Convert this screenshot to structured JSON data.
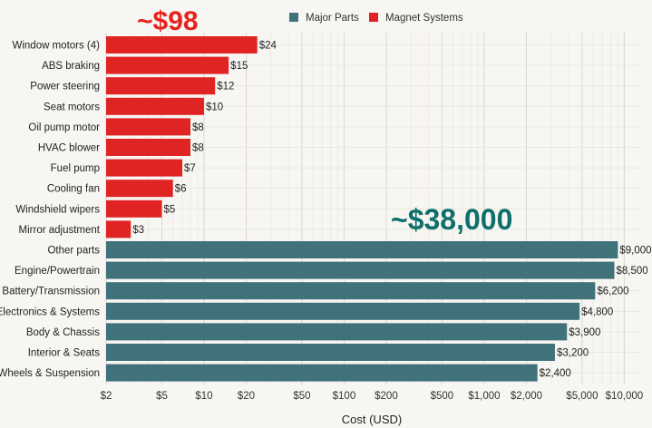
{
  "chart_data": {
    "type": "bar",
    "orientation": "horizontal",
    "x_scale": "log",
    "xlabel": "Cost (USD)",
    "xlim": [
      2,
      13000
    ],
    "grid": true,
    "legend_position": "top-center",
    "x_ticks": [
      {
        "value": 2,
        "label": "$2"
      },
      {
        "value": 5,
        "label": "$5"
      },
      {
        "value": 10,
        "label": "$10"
      },
      {
        "value": 20,
        "label": "$20"
      },
      {
        "value": 50,
        "label": "$50"
      },
      {
        "value": 100,
        "label": "$100"
      },
      {
        "value": 200,
        "label": "$200"
      },
      {
        "value": 500,
        "label": "$500"
      },
      {
        "value": 1000,
        "label": "$1,000"
      },
      {
        "value": 2000,
        "label": "$2,000"
      },
      {
        "value": 5000,
        "label": "$5,000"
      },
      {
        "value": 10000,
        "label": "$10,000"
      }
    ],
    "series": [
      {
        "name": "Magnet Systems",
        "color": "#e02424",
        "annotation": "~$98",
        "items": [
          {
            "label": "Window motors (4)",
            "value": 24,
            "value_label": "$24"
          },
          {
            "label": "ABS braking",
            "value": 15,
            "value_label": "$15"
          },
          {
            "label": "Power steering",
            "value": 12,
            "value_label": "$12"
          },
          {
            "label": "Seat motors",
            "value": 10,
            "value_label": "$10"
          },
          {
            "label": "Oil pump motor",
            "value": 8,
            "value_label": "$8"
          },
          {
            "label": "HVAC blower",
            "value": 8,
            "value_label": "$8"
          },
          {
            "label": "Fuel pump",
            "value": 7,
            "value_label": "$7"
          },
          {
            "label": "Cooling fan",
            "value": 6,
            "value_label": "$6"
          },
          {
            "label": "Windshield wipers",
            "value": 5,
            "value_label": "$5"
          },
          {
            "label": "Mirror adjustment",
            "value": 3,
            "value_label": "$3"
          }
        ]
      },
      {
        "name": "Major Parts",
        "color": "#40727a",
        "annotation": "~$38,000",
        "items": [
          {
            "label": "Other parts",
            "value": 9000,
            "value_label": "$9,000"
          },
          {
            "label": "Engine/Powertrain",
            "value": 8500,
            "value_label": "$8,500"
          },
          {
            "label": "Battery/Transmission",
            "value": 6200,
            "value_label": "$6,200"
          },
          {
            "label": "Electronics & Systems",
            "value": 4800,
            "value_label": "$4,800"
          },
          {
            "label": "Body & Chassis",
            "value": 3900,
            "value_label": "$3,900"
          },
          {
            "label": "Interior & Seats",
            "value": 3200,
            "value_label": "$3,200"
          },
          {
            "label": "Wheels & Suspension",
            "value": 2400,
            "value_label": "$2,400"
          }
        ]
      }
    ],
    "legend": [
      {
        "name": "Major Parts",
        "color": "#40727a"
      },
      {
        "name": "Magnet Systems",
        "color": "#e02424"
      }
    ],
    "annotation_colors": {
      "magnet": "#e8231f",
      "major": "#0f6f6a"
    }
  }
}
